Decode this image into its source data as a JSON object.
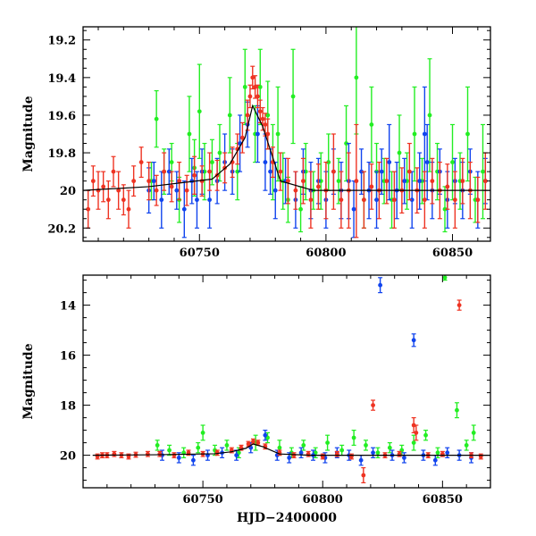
{
  "chart_data": [
    {
      "type": "scatter",
      "title": "",
      "xlabel": "",
      "ylabel": "Magnitude",
      "xlim": [
        60704,
        60865
      ],
      "ylim": [
        20.27,
        19.13
      ],
      "y_inverted": true,
      "x_ticks": [
        60750,
        60800,
        60850
      ],
      "x_tick_labels": [
        "60750",
        "60800",
        "60850"
      ],
      "y_ticks": [
        19.2,
        19.4,
        19.6,
        19.8,
        20,
        20.2
      ],
      "y_tick_labels": [
        "19.2",
        "19.4",
        "19.6",
        "19.8",
        "20",
        "20.2"
      ],
      "grid": false,
      "error_bars": true,
      "model": {
        "color": "#000000",
        "x": [
          60704,
          60730,
          60755,
          60762,
          60768,
          60771,
          60775,
          60782,
          60795,
          60865
        ],
        "y": [
          20.0,
          19.98,
          19.94,
          19.86,
          19.72,
          19.55,
          19.66,
          19.95,
          20.0,
          20.0
        ]
      },
      "series": [
        {
          "color": "#22ee22",
          "x": [
            60731,
            60733,
            60736,
            60739,
            60742,
            60746,
            60748,
            60750,
            60752,
            60755,
            60758,
            60762,
            60765,
            60768,
            60772,
            60774,
            60777,
            60779,
            60781,
            60783,
            60785,
            60787,
            60790,
            60792,
            60795,
            60798,
            60801,
            60805,
            60808,
            60812,
            60815,
            60818,
            60820,
            60823,
            60826,
            60829,
            60832,
            60835,
            60838,
            60841,
            60844,
            60847,
            60850,
            60853,
            60856,
            60859,
            60862
          ],
          "y": [
            19.95,
            19.62,
            19.9,
            19.85,
            20.05,
            19.7,
            19.88,
            19.58,
            19.9,
            19.85,
            19.8,
            19.6,
            19.9,
            19.45,
            19.7,
            19.45,
            19.6,
            19.85,
            19.7,
            19.95,
            20.05,
            19.5,
            20.1,
            19.9,
            20.0,
            19.95,
            19.85,
            19.95,
            19.75,
            19.4,
            20.05,
            19.65,
            19.9,
            19.95,
            20.05,
            19.8,
            19.95,
            19.7,
            19.95,
            19.6,
            19.9,
            20.1,
            19.85,
            19.95,
            19.7,
            20.05,
            19.9
          ],
          "err": [
            0.1,
            0.15,
            0.12,
            0.1,
            0.12,
            0.2,
            0.15,
            0.25,
            0.15,
            0.12,
            0.15,
            0.2,
            0.15,
            0.2,
            0.15,
            0.2,
            0.18,
            0.2,
            0.25,
            0.15,
            0.12,
            0.25,
            0.12,
            0.15,
            0.1,
            0.15,
            0.15,
            0.12,
            0.2,
            0.3,
            0.15,
            0.2,
            0.15,
            0.12,
            0.15,
            0.2,
            0.15,
            0.25,
            0.12,
            0.3,
            0.15,
            0.12,
            0.2,
            0.15,
            0.25,
            0.12,
            0.25
          ]
        },
        {
          "color": "#1144ee",
          "x": [
            60730,
            60732,
            60735,
            60738,
            60741,
            60744,
            60747,
            60749,
            60751,
            60754,
            60757,
            60760,
            60763,
            60766,
            60769,
            60773,
            60776,
            60778,
            60780,
            60784,
            60788,
            60791,
            60794,
            60797,
            60800,
            60803,
            60806,
            60809,
            60811,
            60814,
            60817,
            60820,
            60822,
            60825,
            60828,
            60831,
            60834,
            60837,
            60839,
            60840,
            60842,
            60845,
            60848,
            60851,
            60854,
            60857,
            60860,
            60863
          ],
          "y": [
            20.0,
            19.95,
            20.05,
            19.9,
            20.0,
            20.1,
            19.95,
            20.05,
            19.9,
            20.05,
            19.95,
            19.85,
            19.9,
            19.75,
            19.65,
            19.7,
            19.85,
            19.9,
            20.0,
            19.95,
            20.05,
            19.9,
            20.0,
            19.95,
            20.05,
            19.9,
            20.0,
            19.95,
            20.1,
            19.9,
            20.0,
            20.05,
            19.9,
            19.85,
            20.0,
            19.95,
            20.05,
            19.95,
            19.7,
            19.85,
            20.0,
            19.9,
            20.05,
            19.95,
            20.0,
            19.9,
            20.05,
            19.95
          ],
          "err": [
            0.12,
            0.1,
            0.15,
            0.12,
            0.1,
            0.15,
            0.12,
            0.15,
            0.12,
            0.15,
            0.12,
            0.15,
            0.12,
            0.15,
            0.12,
            0.15,
            0.15,
            0.12,
            0.15,
            0.12,
            0.15,
            0.12,
            0.15,
            0.12,
            0.15,
            0.12,
            0.15,
            0.2,
            0.15,
            0.12,
            0.15,
            0.15,
            0.12,
            0.2,
            0.15,
            0.12,
            0.15,
            0.15,
            0.25,
            0.2,
            0.15,
            0.12,
            0.15,
            0.12,
            0.15,
            0.12,
            0.15,
            0.12
          ]
        },
        {
          "color": "#ee3322",
          "x": [
            60706,
            60708,
            60710,
            60712,
            60714,
            60716,
            60718,
            60720,
            60722,
            60724,
            60727,
            60730,
            60733,
            60736,
            60739,
            60742,
            60745,
            60748,
            60751,
            60754,
            60757,
            60760,
            60763,
            60765,
            60767,
            60769,
            60770,
            60771,
            60772,
            60773,
            60774,
            60775,
            60776,
            60777,
            60779,
            60782,
            60785,
            60788,
            60791,
            60794,
            60797,
            60800,
            60803,
            60806,
            60809,
            60812,
            60815,
            60818,
            60821,
            60824,
            60827,
            60830,
            60833,
            60836,
            60839,
            60842,
            60845,
            60848,
            60851,
            60854,
            60857,
            60860,
            60863
          ],
          "y": [
            20.1,
            19.95,
            20.0,
            19.98,
            20.05,
            19.9,
            20.0,
            20.05,
            20.1,
            19.95,
            19.85,
            19.95,
            20.0,
            19.9,
            19.98,
            19.95,
            20.0,
            19.92,
            19.95,
            19.9,
            19.92,
            19.88,
            19.85,
            19.78,
            19.72,
            19.6,
            19.5,
            19.4,
            19.45,
            19.5,
            19.58,
            19.62,
            19.65,
            19.7,
            19.85,
            19.9,
            19.95,
            20.0,
            19.95,
            20.05,
            19.98,
            20.0,
            19.9,
            20.05,
            20.0,
            19.95,
            20.05,
            19.98,
            20.0,
            19.95,
            20.05,
            20.0,
            19.9,
            20.0,
            20.05,
            19.95,
            20.0,
            19.98,
            20.05,
            19.95,
            20.0,
            20.05,
            19.95
          ],
          "err": [
            0.1,
            0.08,
            0.1,
            0.08,
            0.1,
            0.08,
            0.1,
            0.08,
            0.1,
            0.08,
            0.08,
            0.1,
            0.08,
            0.1,
            0.08,
            0.1,
            0.08,
            0.1,
            0.08,
            0.1,
            0.08,
            0.08,
            0.08,
            0.08,
            0.08,
            0.08,
            0.06,
            0.06,
            0.06,
            0.06,
            0.06,
            0.06,
            0.06,
            0.08,
            0.08,
            0.1,
            0.12,
            0.1,
            0.12,
            0.15,
            0.12,
            0.15,
            0.2,
            0.15,
            0.2,
            0.3,
            0.15,
            0.12,
            0.15,
            0.12,
            0.15,
            0.12,
            0.15,
            0.12,
            0.15,
            0.12,
            0.15,
            0.12,
            0.15,
            0.12,
            0.15,
            0.12,
            0.15
          ]
        }
      ]
    },
    {
      "type": "scatter",
      "title": "",
      "xlabel": "HJD−2400000",
      "ylabel": "Magnitude",
      "xlim": [
        60700,
        60870
      ],
      "ylim": [
        21.3,
        12.8
      ],
      "y_inverted": true,
      "x_ticks": [
        60750,
        60800,
        60850
      ],
      "x_tick_labels": [
        "60750",
        "60800",
        "60850"
      ],
      "y_ticks": [
        14,
        16,
        18,
        20
      ],
      "y_tick_labels": [
        "14",
        "16",
        "18",
        "20"
      ],
      "grid": false,
      "error_bars": true,
      "model": {
        "color": "#000000",
        "x": [
          60704,
          60730,
          60755,
          60762,
          60768,
          60771,
          60775,
          60782,
          60795,
          60870
        ],
        "y": [
          20.0,
          19.98,
          19.94,
          19.86,
          19.72,
          19.55,
          19.66,
          19.95,
          20.0,
          20.0
        ]
      },
      "series": [
        {
          "color": "#22ee22",
          "x": [
            60731,
            60736,
            60742,
            60748,
            60750,
            60755,
            60760,
            60765,
            60772,
            60777,
            60782,
            60787,
            60792,
            60797,
            60802,
            60808,
            60813,
            60818,
            60823,
            60828,
            60833,
            60838,
            60843,
            60848,
            60851,
            60856,
            60860,
            60863
          ],
          "y": [
            19.6,
            19.8,
            19.9,
            19.7,
            19.1,
            19.8,
            19.6,
            19.9,
            19.5,
            19.3,
            19.7,
            19.9,
            19.6,
            19.9,
            19.5,
            19.8,
            19.3,
            19.6,
            19.9,
            19.7,
            19.8,
            19.5,
            19.2,
            19.9,
            12.9,
            18.2,
            19.6,
            19.1
          ],
          "err": [
            0.2,
            0.2,
            0.2,
            0.2,
            0.3,
            0.2,
            0.2,
            0.2,
            0.3,
            0.2,
            0.3,
            0.2,
            0.2,
            0.2,
            0.3,
            0.2,
            0.3,
            0.2,
            0.2,
            0.2,
            0.2,
            0.3,
            0.2,
            0.2,
            0.1,
            0.3,
            0.2,
            0.3
          ]
        },
        {
          "color": "#1144ee",
          "x": [
            60733,
            60740,
            60746,
            60752,
            60758,
            60764,
            60770,
            60776,
            60781,
            60786,
            60791,
            60796,
            60801,
            60806,
            60811,
            60816,
            60821,
            60824,
            60829,
            60834,
            60838,
            60842,
            60847,
            60852,
            60857,
            60862
          ],
          "y": [
            20.0,
            20.1,
            20.2,
            20.0,
            19.9,
            20.0,
            19.7,
            19.2,
            20.0,
            20.1,
            19.9,
            20.0,
            20.1,
            19.9,
            20.0,
            20.2,
            19.9,
            13.2,
            20.0,
            20.1,
            15.4,
            20.0,
            20.2,
            19.9,
            20.0,
            20.1
          ],
          "err": [
            0.2,
            0.2,
            0.2,
            0.2,
            0.2,
            0.2,
            0.2,
            0.2,
            0.2,
            0.2,
            0.2,
            0.2,
            0.2,
            0.2,
            0.2,
            0.2,
            0.2,
            0.3,
            0.2,
            0.2,
            0.25,
            0.2,
            0.2,
            0.2,
            0.2,
            0.2
          ]
        },
        {
          "color": "#ee3322",
          "x": [
            60706,
            60708,
            60710,
            60713,
            60716,
            60719,
            60722,
            60727,
            60732,
            60738,
            60744,
            60750,
            60756,
            60762,
            60766,
            60769,
            60771,
            60773,
            60776,
            60782,
            60788,
            60794,
            60800,
            60806,
            60812,
            60817,
            60821,
            60826,
            60832,
            60838,
            60839,
            60844,
            60850,
            60857,
            60862,
            60866
          ],
          "y": [
            20.05,
            20.0,
            20.0,
            19.95,
            20.0,
            20.05,
            19.98,
            19.95,
            19.95,
            20.0,
            19.9,
            19.95,
            19.9,
            19.8,
            19.7,
            19.55,
            19.45,
            19.5,
            19.65,
            19.9,
            20.0,
            19.95,
            20.05,
            19.95,
            20.05,
            20.8,
            18.0,
            20.0,
            19.95,
            18.8,
            19.1,
            20.0,
            19.95,
            14.0,
            20.0,
            20.05
          ],
          "err": [
            0.1,
            0.1,
            0.1,
            0.1,
            0.1,
            0.1,
            0.1,
            0.1,
            0.1,
            0.1,
            0.1,
            0.1,
            0.1,
            0.1,
            0.1,
            0.1,
            0.1,
            0.1,
            0.1,
            0.1,
            0.1,
            0.1,
            0.1,
            0.1,
            0.1,
            0.3,
            0.2,
            0.1,
            0.1,
            0.3,
            0.3,
            0.1,
            0.1,
            0.2,
            0.1,
            0.1
          ]
        }
      ]
    }
  ]
}
